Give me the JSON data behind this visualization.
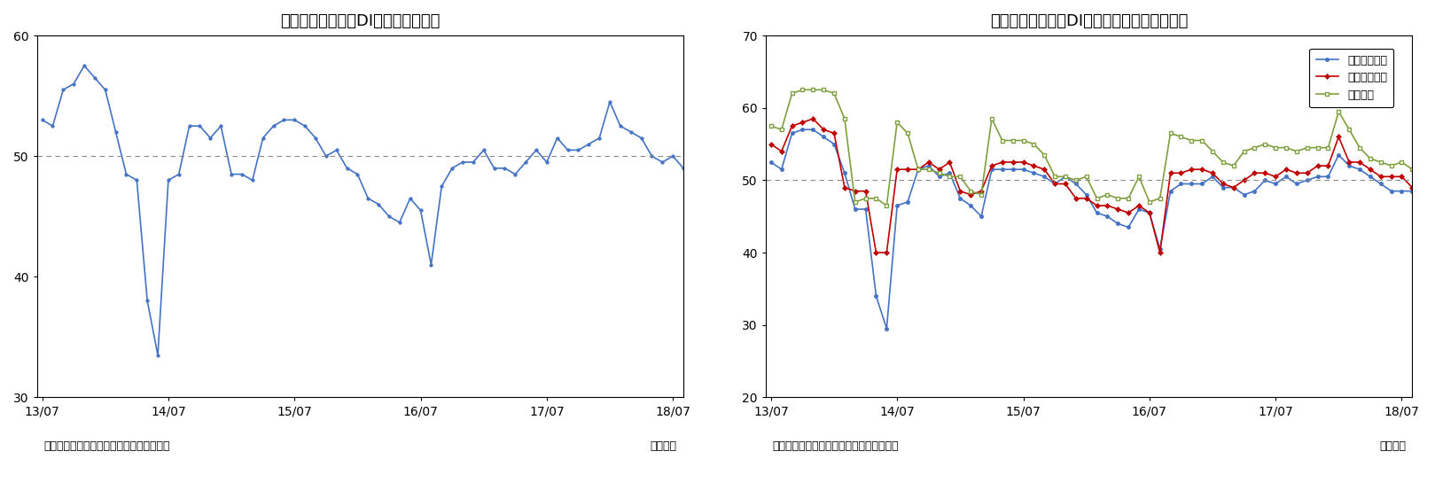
{
  "title1": "景気の先行き判断DI（季節調整値）",
  "title2": "景気の先行き判断DI（分野別、季節調整値）",
  "footnote_left": "（資料）内閣府「景気ウォッチャー調査」",
  "footnote_right": "（月次）",
  "xticks": [
    "13/07",
    "14/07",
    "15/07",
    "16/07",
    "17/07",
    "18/07"
  ],
  "chart1_ylim": [
    30,
    60
  ],
  "chart1_yticks": [
    30,
    40,
    50,
    60
  ],
  "chart2_ylim": [
    20,
    70
  ],
  "chart2_yticks": [
    20,
    30,
    40,
    50,
    60,
    70
  ],
  "line_color1": "#4472C4",
  "line_color_household": "#4472C4",
  "line_color_business": "#C00000",
  "line_color_employment": "#7F9F3E",
  "chart1_data": [
    53.0,
    52.5,
    55.5,
    56.0,
    57.5,
    56.5,
    55.5,
    52.0,
    48.5,
    48.0,
    38.0,
    33.5,
    48.0,
    48.5,
    52.5,
    52.5,
    51.5,
    52.5,
    48.5,
    48.5,
    48.0,
    51.5,
    52.5,
    53.0,
    53.0,
    52.5,
    51.5,
    50.0,
    50.5,
    49.0,
    48.5,
    46.5,
    46.0,
    45.0,
    44.5,
    46.5,
    45.5,
    41.0,
    47.5,
    49.0,
    49.5,
    49.5,
    50.5,
    49.0,
    49.0,
    48.5,
    49.5,
    50.5,
    49.5,
    51.5,
    50.5,
    50.5,
    51.0,
    51.5,
    54.5,
    52.5,
    52.0,
    51.5,
    50.0,
    49.5,
    50.0,
    49.0
  ],
  "household_data": [
    52.5,
    51.5,
    56.5,
    57.0,
    57.0,
    56.0,
    55.0,
    51.0,
    46.0,
    46.0,
    34.0,
    29.5,
    46.5,
    47.0,
    51.5,
    52.0,
    50.5,
    51.0,
    47.5,
    46.5,
    45.0,
    51.5,
    51.5,
    51.5,
    51.5,
    51.0,
    50.5,
    49.5,
    50.5,
    49.5,
    48.0,
    45.5,
    45.0,
    44.0,
    43.5,
    46.0,
    45.5,
    40.5,
    48.5,
    49.5,
    49.5,
    49.5,
    50.5,
    49.0,
    49.0,
    48.0,
    48.5,
    50.0,
    49.5,
    50.5,
    49.5,
    50.0,
    50.5,
    50.5,
    53.5,
    52.0,
    51.5,
    50.5,
    49.5,
    48.5,
    48.5,
    48.5
  ],
  "business_data": [
    55.0,
    54.0,
    57.5,
    58.0,
    58.5,
    57.0,
    56.5,
    49.0,
    48.5,
    48.5,
    40.0,
    40.0,
    51.5,
    51.5,
    51.5,
    52.5,
    51.5,
    52.5,
    48.5,
    48.0,
    48.5,
    52.0,
    52.5,
    52.5,
    52.5,
    52.0,
    51.5,
    49.5,
    49.5,
    47.5,
    47.5,
    46.5,
    46.5,
    46.0,
    45.5,
    46.5,
    45.5,
    40.0,
    51.0,
    51.0,
    51.5,
    51.5,
    51.0,
    49.5,
    49.0,
    50.0,
    51.0,
    51.0,
    50.5,
    51.5,
    51.0,
    51.0,
    52.0,
    52.0,
    56.0,
    52.5,
    52.5,
    51.5,
    50.5,
    50.5,
    50.5,
    49.0
  ],
  "employment_data": [
    57.5,
    57.0,
    62.0,
    62.5,
    62.5,
    62.5,
    62.0,
    58.5,
    47.0,
    47.5,
    47.5,
    46.5,
    58.0,
    56.5,
    51.5,
    51.5,
    51.0,
    50.5,
    50.5,
    48.5,
    48.0,
    58.5,
    55.5,
    55.5,
    55.5,
    55.0,
    53.5,
    50.5,
    50.5,
    50.0,
    50.5,
    47.5,
    48.0,
    47.5,
    47.5,
    50.5,
    47.0,
    47.5,
    56.5,
    56.0,
    55.5,
    55.5,
    54.0,
    52.5,
    52.0,
    54.0,
    54.5,
    55.0,
    54.5,
    54.5,
    54.0,
    54.5,
    54.5,
    54.5,
    59.5,
    57.0,
    54.5,
    53.0,
    52.5,
    52.0,
    52.5,
    51.5
  ],
  "legend_labels": [
    "家計動向関連",
    "企業動向関連",
    "雇用関連"
  ],
  "background_color": "#FFFFFF",
  "grid_color": "#CCCCCC"
}
